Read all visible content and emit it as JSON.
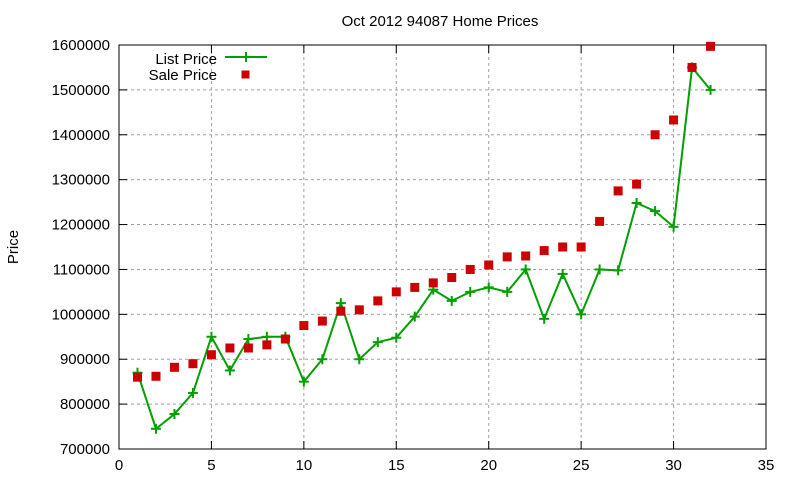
{
  "chart_data": {
    "type": "line",
    "title": "Oct 2012 94087 Home Prices",
    "xlabel": "",
    "ylabel": "Price",
    "xlim": [
      0,
      35
    ],
    "ylim": [
      700000,
      1600000
    ],
    "xticks": [
      0,
      5,
      10,
      15,
      20,
      25,
      30,
      35
    ],
    "yticks": [
      700000,
      800000,
      900000,
      1000000,
      1100000,
      1200000,
      1300000,
      1400000,
      1500000,
      1600000
    ],
    "grid": true,
    "legend_position": "top-left",
    "x": [
      1,
      2,
      3,
      4,
      5,
      6,
      7,
      8,
      9,
      10,
      11,
      12,
      13,
      14,
      15,
      16,
      17,
      18,
      19,
      20,
      21,
      22,
      23,
      24,
      25,
      26,
      27,
      28,
      29,
      30,
      31,
      32
    ],
    "series": [
      {
        "name": "List Price",
        "style": "linespoints",
        "color": "#00a000",
        "values": [
          870000,
          745000,
          778000,
          825000,
          950000,
          875000,
          945000,
          950000,
          950000,
          850000,
          900000,
          1025000,
          900000,
          938000,
          948000,
          995000,
          1055000,
          1030000,
          1050000,
          1060000,
          1050000,
          1100000,
          990000,
          1090000,
          1000000,
          1100000,
          1098000,
          1248000,
          1230000,
          1195000,
          1550000,
          1500000
        ]
      },
      {
        "name": "Sale Price",
        "style": "points",
        "color": "#cc0000",
        "values": [
          860000,
          862000,
          882000,
          890000,
          910000,
          925000,
          925000,
          932000,
          945000,
          975000,
          985000,
          1007000,
          1010000,
          1030000,
          1050000,
          1060000,
          1070000,
          1082000,
          1100000,
          1110000,
          1128000,
          1130000,
          1142000,
          1150000,
          1150000,
          1207000,
          1275000,
          1290000,
          1400000,
          1433000,
          1550000,
          1597000
        ]
      }
    ]
  }
}
